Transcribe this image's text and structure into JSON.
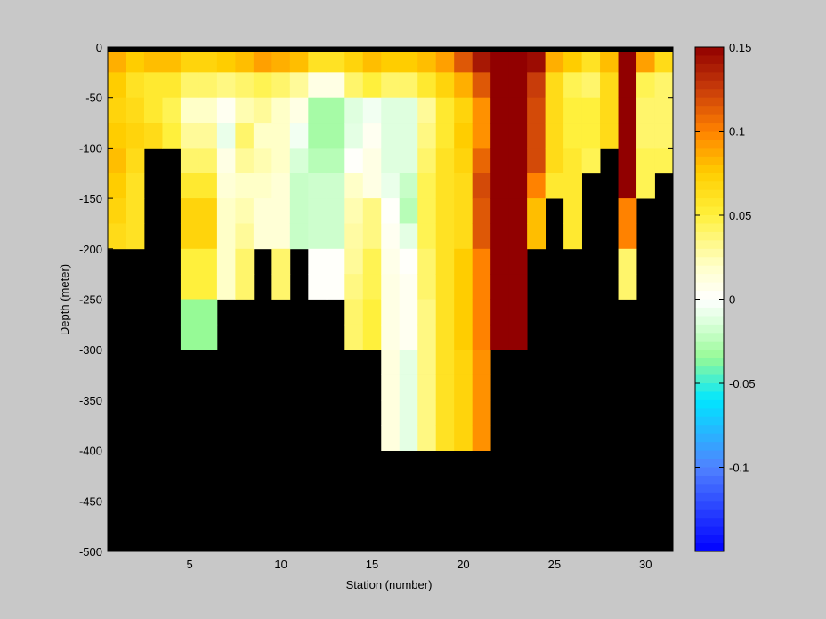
{
  "chart_data": {
    "type": "heatmap",
    "title": "",
    "xlabel": "Station (number)",
    "ylabel": "Depth (meter)",
    "xlim": [
      1,
      31
    ],
    "ylim": [
      -500,
      0
    ],
    "x_ticks": [
      5,
      10,
      15,
      20,
      25,
      30
    ],
    "y_ticks": [
      0,
      -50,
      -100,
      -150,
      -200,
      -250,
      -300,
      -350,
      -400,
      -450,
      -500
    ],
    "no_data_color": "#000000",
    "background_color": "#c8c8c8",
    "colorbar": {
      "position": "right",
      "range": [
        -0.15,
        0.15
      ],
      "ticks": [
        0.15,
        0.1,
        0.05,
        0,
        -0.05,
        -0.1
      ],
      "tick_labels": [
        "0.15",
        "0.1",
        "0.05",
        "0",
        "-0.05",
        "-0.1"
      ],
      "colormap": "blue-cyan-green-white-yellow-orange-darkred"
    },
    "depths": [
      -12.5,
      -37.5,
      -62.5,
      -87.5,
      -112.5,
      -137.5,
      -162.5,
      -187.5,
      -212.5,
      -237.5,
      -262.5,
      -287.5,
      -312.5,
      -337.5,
      -362.5,
      -387.5
    ],
    "stations": [
      {
        "x": 1,
        "bottom": -200,
        "values": [
          0.085,
          0.075,
          0.07,
          0.075,
          0.08,
          0.075,
          0.07,
          0.065
        ]
      },
      {
        "x": 2,
        "bottom": -200,
        "values": [
          0.075,
          0.06,
          0.065,
          0.07,
          0.065,
          0.06,
          0.06,
          0.06
        ]
      },
      {
        "x": 3,
        "bottom": -100,
        "values": [
          0.08,
          0.055,
          0.055,
          0.065
        ]
      },
      {
        "x": 4,
        "bottom": -100,
        "values": [
          0.08,
          0.055,
          0.045,
          0.05
        ]
      },
      {
        "x": 5,
        "bottom": -300,
        "values": [
          0.07,
          0.04,
          0.02,
          0.03,
          0.04,
          0.055,
          0.07,
          0.07,
          0.05,
          0.05,
          -0.035,
          -0.035
        ]
      },
      {
        "x": 6,
        "bottom": -300,
        "values": [
          0.07,
          0.04,
          0.02,
          0.03,
          0.04,
          0.055,
          0.07,
          0.07,
          0.05,
          0.05,
          -0.035,
          -0.035
        ]
      },
      {
        "x": 7,
        "bottom": -250,
        "values": [
          0.075,
          0.035,
          0.005,
          -0.008,
          0.01,
          0.015,
          0.02,
          0.02,
          0.02,
          0.02
        ]
      },
      {
        "x": 8,
        "bottom": -250,
        "values": [
          0.08,
          0.04,
          0.025,
          0.04,
          0.03,
          0.02,
          0.025,
          0.03,
          0.04,
          0.04
        ]
      },
      {
        "x": 9,
        "bottom": -200,
        "values": [
          0.09,
          0.045,
          0.03,
          0.02,
          0.025,
          0.02,
          0.015,
          0.015
        ]
      },
      {
        "x": 10,
        "bottom": -250,
        "values": [
          0.085,
          0.04,
          0.02,
          0.02,
          0.02,
          0.015,
          0.015,
          0.015,
          0.04,
          0.04
        ]
      },
      {
        "x": 11,
        "bottom": -200,
        "values": [
          0.08,
          0.03,
          0.01,
          -0.005,
          -0.015,
          -0.02,
          -0.02,
          -0.02
        ]
      },
      {
        "x": 12,
        "bottom": -250,
        "values": [
          0.06,
          0.01,
          -0.03,
          -0.03,
          -0.025,
          -0.018,
          -0.018,
          -0.018,
          0.002,
          0.002
        ]
      },
      {
        "x": 13,
        "bottom": -250,
        "values": [
          0.06,
          0.01,
          -0.03,
          -0.03,
          -0.025,
          -0.018,
          -0.018,
          -0.018,
          0.002,
          0.002
        ]
      },
      {
        "x": 14,
        "bottom": -300,
        "values": [
          0.07,
          0.04,
          -0.012,
          -0.01,
          0.002,
          0.02,
          0.025,
          0.028,
          0.03,
          0.035,
          0.04,
          0.04
        ]
      },
      {
        "x": 15,
        "bottom": -300,
        "values": [
          0.08,
          0.05,
          -0.005,
          0.005,
          0.01,
          0.01,
          0.035,
          0.035,
          0.045,
          0.045,
          0.05,
          0.05
        ]
      },
      {
        "x": 16,
        "bottom": -400,
        "values": [
          0.075,
          0.04,
          -0.012,
          -0.012,
          -0.012,
          -0.008,
          0.002,
          0.005,
          0.008,
          0.01,
          0.01,
          0.01,
          0.012,
          0.012,
          0.012,
          0.012
        ]
      },
      {
        "x": 17,
        "bottom": -400,
        "values": [
          0.075,
          0.04,
          -0.012,
          -0.012,
          -0.012,
          -0.02,
          -0.025,
          -0.01,
          0.002,
          0.005,
          0.005,
          0.005,
          -0.01,
          -0.01,
          -0.01,
          -0.01
        ]
      },
      {
        "x": 18,
        "bottom": -400,
        "values": [
          0.08,
          0.055,
          0.03,
          0.035,
          0.04,
          0.045,
          0.045,
          0.045,
          0.04,
          0.04,
          0.035,
          0.035,
          0.035,
          0.035,
          0.035,
          0.035
        ]
      },
      {
        "x": 19,
        "bottom": -400,
        "values": [
          0.09,
          0.07,
          0.055,
          0.055,
          0.06,
          0.06,
          0.06,
          0.06,
          0.06,
          0.06,
          0.06,
          0.06,
          0.06,
          0.06,
          0.06,
          0.06
        ]
      },
      {
        "x": 20,
        "bottom": -400,
        "values": [
          0.115,
          0.085,
          0.07,
          0.075,
          0.07,
          0.065,
          0.065,
          0.065,
          0.075,
          0.075,
          0.075,
          0.075,
          0.07,
          0.07,
          0.07,
          0.07
        ]
      },
      {
        "x": 21,
        "bottom": -400,
        "values": [
          0.14,
          0.115,
          0.095,
          0.095,
          0.11,
          0.12,
          0.115,
          0.115,
          0.1,
          0.1,
          0.1,
          0.1,
          0.095,
          0.095,
          0.095,
          0.095
        ]
      },
      {
        "x": 22,
        "bottom": -300,
        "values": [
          0.15,
          0.15,
          0.15,
          0.15,
          0.15,
          0.15,
          0.15,
          0.15,
          0.15,
          0.15,
          0.15,
          0.15
        ]
      },
      {
        "x": 23,
        "bottom": -300,
        "values": [
          0.15,
          0.15,
          0.15,
          0.15,
          0.15,
          0.15,
          0.15,
          0.15,
          0.15,
          0.15,
          0.15,
          0.15
        ]
      },
      {
        "x": 24,
        "bottom": -200,
        "values": [
          0.145,
          0.125,
          0.12,
          0.12,
          0.12,
          0.1,
          0.08,
          0.08
        ]
      },
      {
        "x": 25,
        "bottom": -150,
        "values": [
          0.085,
          0.065,
          0.065,
          0.065,
          0.065,
          0.055
        ]
      },
      {
        "x": 26,
        "bottom": -200,
        "values": [
          0.075,
          0.045,
          0.05,
          0.05,
          0.055,
          0.055,
          0.055,
          0.055
        ]
      },
      {
        "x": 27,
        "bottom": -125,
        "values": [
          0.06,
          0.04,
          0.05,
          0.05,
          0.045
        ]
      },
      {
        "x": 28,
        "bottom": -100,
        "values": [
          0.08,
          0.065,
          0.065,
          0.065
        ]
      },
      {
        "x": 29,
        "bottom": -250,
        "values": [
          0.15,
          0.15,
          0.15,
          0.15,
          0.15,
          0.15,
          0.1,
          0.1,
          0.04,
          0.04
        ]
      },
      {
        "x": 30,
        "bottom": -150,
        "values": [
          0.09,
          0.045,
          0.04,
          0.04,
          0.045,
          0.045
        ]
      },
      {
        "x": 31,
        "bottom": -125,
        "values": [
          0.065,
          0.04,
          0.04,
          0.04,
          0.045
        ]
      }
    ]
  }
}
